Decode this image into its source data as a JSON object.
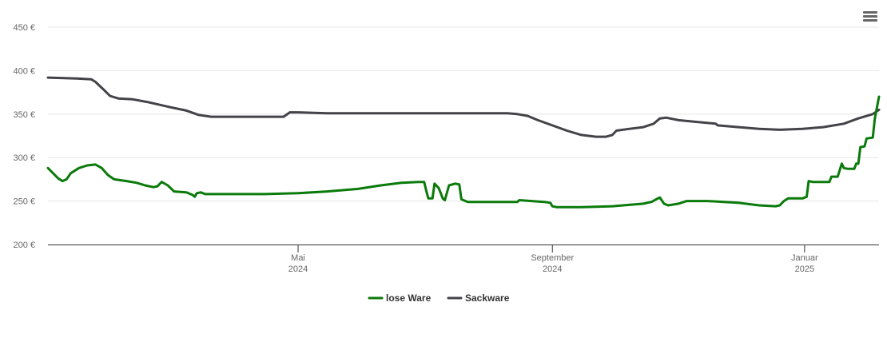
{
  "colors": {
    "lose": "#0a7a0a",
    "sack": "#434348",
    "grid": "#e6e6e6",
    "axis": "#333333"
  },
  "icons": {
    "menu": "hamburger-menu-icon"
  },
  "chart_data": {
    "type": "line",
    "title": "",
    "xlabel": "",
    "ylabel": "",
    "ylim": [
      200,
      450
    ],
    "yticks": [
      {
        "value": 200,
        "label": "200 €"
      },
      {
        "value": 250,
        "label": "250 €"
      },
      {
        "value": 300,
        "label": "300 €"
      },
      {
        "value": 350,
        "label": "350 €"
      },
      {
        "value": 400,
        "label": "400 €"
      },
      {
        "value": 450,
        "label": "450 €"
      }
    ],
    "xlim": [
      "2024-01-01",
      "2025-02-06"
    ],
    "xticks": [
      {
        "date": "2024-05-01",
        "label": "Mai",
        "year": "2024"
      },
      {
        "date": "2024-09-01",
        "label": "September",
        "year": "2024"
      },
      {
        "date": "2025-01-01",
        "label": "Januar",
        "year": "2025"
      }
    ],
    "grid": true,
    "legend_position": "bottom-center",
    "series": [
      {
        "name": "lose Ware",
        "color": "#0a7a0a",
        "points": [
          [
            "2024-01-01",
            288
          ],
          [
            "2024-01-06",
            276
          ],
          [
            "2024-01-08",
            273
          ],
          [
            "2024-01-10",
            275
          ],
          [
            "2024-01-12",
            282
          ],
          [
            "2024-01-16",
            288
          ],
          [
            "2024-01-20",
            291
          ],
          [
            "2024-01-24",
            292
          ],
          [
            "2024-01-27",
            288
          ],
          [
            "2024-01-30",
            280
          ],
          [
            "2024-02-02",
            275
          ],
          [
            "2024-02-08",
            273
          ],
          [
            "2024-02-13",
            271
          ],
          [
            "2024-02-17",
            268
          ],
          [
            "2024-02-21",
            266
          ],
          [
            "2024-02-23",
            267
          ],
          [
            "2024-02-25",
            272
          ],
          [
            "2024-02-28",
            268
          ],
          [
            "2024-03-02",
            261
          ],
          [
            "2024-03-08",
            260
          ],
          [
            "2024-03-11",
            257
          ],
          [
            "2024-03-12",
            255
          ],
          [
            "2024-03-13",
            259
          ],
          [
            "2024-03-15",
            260
          ],
          [
            "2024-03-17",
            258
          ],
          [
            "2024-04-01",
            258
          ],
          [
            "2024-04-15",
            258
          ],
          [
            "2024-05-01",
            259
          ],
          [
            "2024-05-15",
            261
          ],
          [
            "2024-05-30",
            264
          ],
          [
            "2024-06-10",
            268
          ],
          [
            "2024-06-20",
            271
          ],
          [
            "2024-06-28",
            272
          ],
          [
            "2024-07-01",
            272
          ],
          [
            "2024-07-02",
            262
          ],
          [
            "2024-07-03",
            253
          ],
          [
            "2024-07-05",
            253
          ],
          [
            "2024-07-06",
            270
          ],
          [
            "2024-07-08",
            265
          ],
          [
            "2024-07-10",
            253
          ],
          [
            "2024-07-11",
            251
          ],
          [
            "2024-07-13",
            268
          ],
          [
            "2024-07-16",
            270
          ],
          [
            "2024-07-18",
            269
          ],
          [
            "2024-07-19",
            252
          ],
          [
            "2024-07-22",
            249
          ],
          [
            "2024-08-01",
            249
          ],
          [
            "2024-08-15",
            249
          ],
          [
            "2024-08-16",
            251
          ],
          [
            "2024-08-22",
            250
          ],
          [
            "2024-08-28",
            249
          ],
          [
            "2024-08-31",
            248
          ],
          [
            "2024-09-01",
            244
          ],
          [
            "2024-09-03",
            243
          ],
          [
            "2024-09-15",
            243
          ],
          [
            "2024-09-30",
            244
          ],
          [
            "2024-10-15",
            247
          ],
          [
            "2024-10-19",
            249
          ],
          [
            "2024-10-22",
            253
          ],
          [
            "2024-10-23",
            254
          ],
          [
            "2024-10-25",
            247
          ],
          [
            "2024-10-27",
            245
          ],
          [
            "2024-11-01",
            247
          ],
          [
            "2024-11-05",
            250
          ],
          [
            "2024-11-15",
            250
          ],
          [
            "2024-11-30",
            248
          ],
          [
            "2024-12-10",
            245
          ],
          [
            "2024-12-18",
            244
          ],
          [
            "2024-12-20",
            245
          ],
          [
            "2024-12-22",
            250
          ],
          [
            "2024-12-24",
            253
          ],
          [
            "2024-12-30",
            253
          ],
          [
            "2024-12-31",
            253
          ],
          [
            "2025-01-02",
            255
          ],
          [
            "2025-01-03",
            273
          ],
          [
            "2025-01-05",
            272
          ],
          [
            "2025-01-07",
            272
          ],
          [
            "2025-01-12",
            272
          ],
          [
            "2025-01-13",
            272
          ],
          [
            "2025-01-14",
            278
          ],
          [
            "2025-01-17",
            278
          ],
          [
            "2025-01-19",
            293
          ],
          [
            "2025-01-20",
            288
          ],
          [
            "2025-01-22",
            287
          ],
          [
            "2025-01-25",
            287
          ],
          [
            "2025-01-26",
            293
          ],
          [
            "2025-01-27",
            293
          ],
          [
            "2025-01-28",
            312
          ],
          [
            "2025-01-30",
            313
          ],
          [
            "2025-01-31",
            322
          ],
          [
            "2025-02-03",
            323
          ],
          [
            "2025-02-04",
            345
          ],
          [
            "2025-02-06",
            370
          ]
        ]
      },
      {
        "name": "Sackware",
        "color": "#434348",
        "points": [
          [
            "2024-01-01",
            392
          ],
          [
            "2024-01-15",
            391
          ],
          [
            "2024-01-22",
            390
          ],
          [
            "2024-01-24",
            387
          ],
          [
            "2024-01-28",
            378
          ],
          [
            "2024-01-31",
            371
          ],
          [
            "2024-02-04",
            368
          ],
          [
            "2024-02-11",
            367
          ],
          [
            "2024-02-18",
            364
          ],
          [
            "2024-02-29",
            358
          ],
          [
            "2024-03-08",
            354
          ],
          [
            "2024-03-14",
            349
          ],
          [
            "2024-03-20",
            347
          ],
          [
            "2024-04-01",
            347
          ],
          [
            "2024-04-15",
            347
          ],
          [
            "2024-04-24",
            347
          ],
          [
            "2024-04-27",
            352
          ],
          [
            "2024-05-01",
            352
          ],
          [
            "2024-05-15",
            351
          ],
          [
            "2024-06-01",
            351
          ],
          [
            "2024-07-01",
            351
          ],
          [
            "2024-08-01",
            351
          ],
          [
            "2024-08-10",
            351
          ],
          [
            "2024-08-15",
            350
          ],
          [
            "2024-08-20",
            348
          ],
          [
            "2024-08-25",
            343
          ],
          [
            "2024-09-01",
            337
          ],
          [
            "2024-09-08",
            331
          ],
          [
            "2024-09-15",
            326
          ],
          [
            "2024-09-22",
            324
          ],
          [
            "2024-09-27",
            324
          ],
          [
            "2024-09-30",
            326
          ],
          [
            "2024-10-02",
            331
          ],
          [
            "2024-10-08",
            333
          ],
          [
            "2024-10-15",
            335
          ],
          [
            "2024-10-20",
            339
          ],
          [
            "2024-10-23",
            345
          ],
          [
            "2024-10-26",
            346
          ],
          [
            "2024-11-01",
            343
          ],
          [
            "2024-11-10",
            341
          ],
          [
            "2024-11-19",
            339
          ],
          [
            "2024-11-20",
            337
          ],
          [
            "2024-11-30",
            335
          ],
          [
            "2024-12-10",
            333
          ],
          [
            "2024-12-20",
            332
          ],
          [
            "2024-12-31",
            333
          ],
          [
            "2025-01-10",
            335
          ],
          [
            "2025-01-20",
            339
          ],
          [
            "2025-01-27",
            345
          ],
          [
            "2025-02-03",
            350
          ],
          [
            "2025-02-06",
            355
          ]
        ]
      }
    ]
  }
}
